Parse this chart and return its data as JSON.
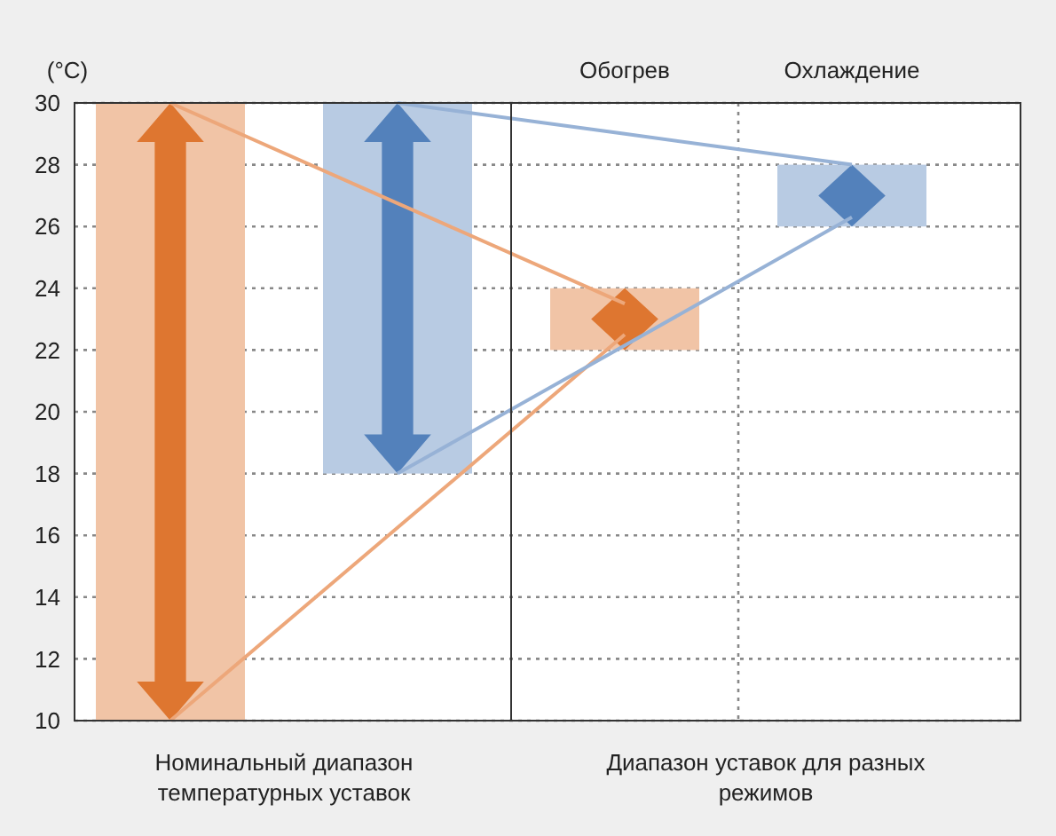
{
  "chart_data": {
    "type": "bar",
    "ylabel": "(°C)",
    "categories": [
      null,
      null,
      "Обогрев",
      "Охлаждение"
    ],
    "base": [
      10,
      18,
      22,
      26
    ],
    "values": [
      20,
      12,
      2,
      2
    ],
    "colors": [
      "#f1c4a6",
      "#b8cbe3",
      "#f1c4a6",
      "#b8cbe3"
    ],
    "series": [
      {
        "type": "line",
        "color": "#eda77a",
        "values": [
          30,
          26.75,
          23.5,
          null
        ]
      },
      {
        "type": "line",
        "color": "#eda77a",
        "values": [
          10,
          16.25,
          22.5,
          null
        ]
      },
      {
        "type": "line",
        "color": "#97b2d6",
        "values": [
          null,
          30,
          29,
          28
        ]
      },
      {
        "type": "line",
        "color": "#97b2d6",
        "values": [
          null,
          18,
          22.15,
          26.3
        ]
      }
    ],
    "ylim": [
      10,
      30
    ],
    "yticks": [
      10,
      12,
      14,
      16,
      18,
      20,
      22,
      24,
      26,
      28,
      30
    ],
    "grid": "y",
    "annotations": [
      "Номинальный диапазон температурных уставок",
      "Диапазон уставок для разных режимов"
    ]
  }
}
